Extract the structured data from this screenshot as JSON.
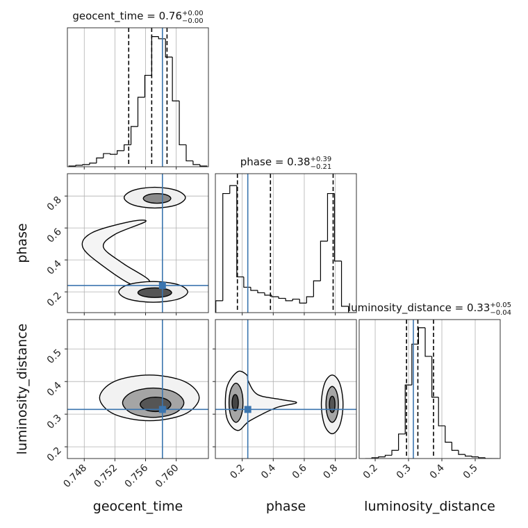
{
  "chart_data": [
    {
      "type": "histogram",
      "title": {
        "text": "geocent_time = 0.76",
        "upper": "+0.00",
        "lower": "−0.00"
      },
      "bins": [
        0.746,
        0.7469,
        0.7478,
        0.7487,
        0.7496,
        0.7505,
        0.7514,
        0.7523,
        0.7532,
        0.7541,
        0.755,
        0.7559,
        0.7568,
        0.7577,
        0.7586,
        0.7595,
        0.7604,
        0.7613,
        0.7622,
        0.7631,
        0.764
      ],
      "values": [
        1,
        2,
        3,
        5,
        12,
        18,
        17,
        22,
        30,
        55,
        95,
        125,
        178,
        175,
        150,
        90,
        30,
        8,
        3,
        1
      ],
      "color": "#000000",
      "xlim": [
        0.7458,
        0.7642
      ],
      "ylim": [
        0,
        190
      ],
      "xticks": [
        0.748,
        0.752,
        0.756,
        {
          "value": 0.76,
          "label": "0.760"
        }
      ],
      "show_xtick_labels": false,
      "quantiles": [
        0.7538,
        0.7568,
        0.7588
      ],
      "truth": 0.7582,
      "truth_color": "#3b75af",
      "grid": true
    },
    {
      "type": "histogram",
      "title": {
        "text": "phase = 0.38",
        "upper": "+0.39",
        "lower": "−0.21"
      },
      "bins": [
        0.03,
        0.075,
        0.12,
        0.165,
        0.21,
        0.255,
        0.3,
        0.345,
        0.39,
        0.435,
        0.48,
        0.525,
        0.57,
        0.615,
        0.66,
        0.705,
        0.75,
        0.795,
        0.84,
        0.885,
        0.93
      ],
      "values": [
        15,
        150,
        160,
        45,
        32,
        28,
        25,
        22,
        20,
        18,
        15,
        17,
        12,
        20,
        40,
        90,
        150,
        65,
        8,
        0
      ],
      "color": "#000000",
      "xlim": [
        0.027,
        0.936
      ],
      "ylim": [
        0,
        175
      ],
      "xticks": [
        0.2,
        0.4,
        0.6,
        0.8
      ],
      "show_xtick_labels": false,
      "quantiles": [
        0.169,
        0.382,
        0.786
      ],
      "truth": 0.236,
      "truth_color": "#3b75af",
      "grid": true
    },
    {
      "type": "histogram",
      "title": {
        "text": "luminosity_distance = 0.33",
        "upper": "+0.05",
        "lower": "−0.04"
      },
      "bins": [
        0.17,
        0.19,
        0.21,
        0.23,
        0.25,
        0.27,
        0.29,
        0.31,
        0.33,
        0.35,
        0.37,
        0.39,
        0.41,
        0.43,
        0.45,
        0.47,
        0.49,
        0.51,
        0.53,
        0.55,
        0.57
      ],
      "values": [
        0,
        1,
        2,
        4,
        10,
        30,
        90,
        140,
        160,
        125,
        75,
        40,
        20,
        10,
        5,
        3,
        2,
        1,
        0,
        0
      ],
      "color": "#000000",
      "xlim": [
        0.152,
        0.575
      ],
      "ylim": [
        0,
        170
      ],
      "xticks": [
        0.2,
        0.3,
        0.4,
        0.5
      ],
      "show_xtick_labels": true,
      "xlabel": "luminosity_distance",
      "quantiles": [
        0.294,
        0.328,
        0.375
      ],
      "truth": 0.3145,
      "truth_color": "#3b75af",
      "grid": true
    },
    {
      "type": "contour",
      "xlim": [
        0.7458,
        0.7642
      ],
      "ylim": [
        0.07,
        0.94
      ],
      "xticks": [
        0.748,
        0.752,
        0.756,
        {
          "value": 0.76,
          "label": "0.760"
        }
      ],
      "show_xtick_labels": false,
      "yticks": [
        0.2,
        0.4,
        0.6,
        0.8
      ],
      "show_ytick_labels": true,
      "ylabel": "phase",
      "contours": [
        {
          "x": [
            0.7545,
            0.7505,
            0.7478,
            0.749,
            0.754,
            0.756,
            0.752,
            0.7505,
            0.753,
            0.7565
          ],
          "y": [
            0.24,
            0.36,
            0.48,
            0.57,
            0.64,
            0.64,
            0.56,
            0.48,
            0.38,
            0.27
          ],
          "fill": "#f4f4f4"
        },
        {
          "x": [
            0.7612,
            0.76,
            0.7572,
            0.7544,
            0.7532,
            0.7544,
            0.7572,
            0.76
          ],
          "y": [
            0.79,
            0.836,
            0.855,
            0.836,
            0.79,
            0.744,
            0.725,
            0.744
          ],
          "fill": "#f0f0f0"
        },
        {
          "x": [
            0.7593,
            0.7588,
            0.7575,
            0.7562,
            0.7557,
            0.7562,
            0.7575,
            0.7588
          ],
          "y": [
            0.785,
            0.806,
            0.815,
            0.806,
            0.785,
            0.764,
            0.755,
            0.764
          ],
          "fill": "#8a8a8a"
        },
        {
          "x": [
            0.7615,
            0.7602,
            0.757,
            0.7538,
            0.7525,
            0.7538,
            0.757,
            0.7602
          ],
          "y": [
            0.2,
            0.246,
            0.265,
            0.246,
            0.2,
            0.154,
            0.135,
            0.154
          ],
          "fill": "#f0f0f0"
        },
        {
          "x": [
            0.7594,
            0.7588,
            0.7572,
            0.7556,
            0.755,
            0.7556,
            0.7572,
            0.7588
          ],
          "y": [
            0.195,
            0.216,
            0.225,
            0.216,
            0.195,
            0.174,
            0.165,
            0.174
          ],
          "fill": "#555555"
        }
      ],
      "truth": {
        "x": 0.7582,
        "y": 0.24
      },
      "truth_color": "#3b75af",
      "grid": true
    },
    {
      "type": "contour",
      "xlim": [
        0.7458,
        0.7642
      ],
      "ylim": [
        0.164,
        0.59
      ],
      "xticks": [
        0.748,
        0.752,
        0.756,
        {
          "value": 0.76,
          "label": "0.760"
        }
      ],
      "show_xtick_labels": true,
      "xlabel": "geocent_time",
      "yticks": [
        0.2,
        0.3,
        0.4,
        0.5
      ],
      "show_ytick_labels": true,
      "ylabel": "luminosity_distance",
      "contours": [
        {
          "x": [
            0.763,
            0.7611,
            0.7565,
            0.7519,
            0.75,
            0.7519,
            0.7565,
            0.7611
          ],
          "y": [
            0.35,
            0.4,
            0.42,
            0.4,
            0.35,
            0.3,
            0.28,
            0.3
          ],
          "fill": "#f2f2f2"
        },
        {
          "x": [
            0.761,
            0.7598,
            0.757,
            0.7542,
            0.753,
            0.7542,
            0.757,
            0.7598
          ],
          "y": [
            0.335,
            0.367,
            0.38,
            0.367,
            0.335,
            0.303,
            0.29,
            0.303
          ],
          "fill": "#a5a5a5"
        },
        {
          "x": [
            0.7593,
            0.7587,
            0.7573,
            0.7559,
            0.7553,
            0.7559,
            0.7573,
            0.7587
          ],
          "y": [
            0.33,
            0.3456,
            0.352,
            0.3456,
            0.33,
            0.3144,
            0.308,
            0.3144
          ],
          "fill": "#555555"
        }
      ],
      "truth": {
        "x": 0.7582,
        "y": 0.3145
      },
      "truth_color": "#3b75af",
      "grid": true
    },
    {
      "type": "contour",
      "xlim": [
        0.027,
        0.936
      ],
      "ylim": [
        0.164,
        0.59
      ],
      "xticks": [
        0.2,
        0.4,
        0.6,
        0.8
      ],
      "show_xtick_labels": true,
      "xlabel": "phase",
      "yticks": [
        0.2,
        0.3,
        0.4,
        0.5
      ],
      "show_ytick_labels": false,
      "contours": [
        {
          "x": [
            0.24,
            0.3,
            0.45,
            0.55,
            0.42,
            0.25,
            0.17,
            0.1,
            0.1,
            0.17,
            0.23
          ],
          "y": [
            0.4,
            0.36,
            0.345,
            0.335,
            0.32,
            0.28,
            0.25,
            0.29,
            0.38,
            0.43,
            0.42
          ],
          "fill": "#f4f4f4"
        },
        {
          "x": [
            0.205,
            0.192,
            0.16,
            0.128,
            0.115,
            0.128,
            0.16,
            0.192
          ],
          "y": [
            0.335,
            0.377,
            0.395,
            0.377,
            0.335,
            0.293,
            0.275,
            0.293
          ],
          "fill": "#a5a5a5"
        },
        {
          "x": [
            0.175,
            0.169,
            0.155,
            0.141,
            0.135,
            0.141,
            0.155,
            0.169
          ],
          "y": [
            0.335,
            0.353,
            0.36,
            0.353,
            0.335,
            0.317,
            0.31,
            0.317
          ],
          "fill": "#444444"
        },
        {
          "x": [
            0.85,
            0.829,
            0.78,
            0.731,
            0.71,
            0.731,
            0.78,
            0.829
          ],
          "y": [
            0.33,
            0.394,
            0.42,
            0.394,
            0.33,
            0.266,
            0.24,
            0.266
          ],
          "fill": "#f2f2f2"
        },
        {
          "x": [
            0.82,
            0.808,
            0.78,
            0.752,
            0.74,
            0.752,
            0.78,
            0.808
          ],
          "y": [
            0.33,
            0.369,
            0.385,
            0.369,
            0.33,
            0.291,
            0.275,
            0.291
          ],
          "fill": "#a5a5a5"
        },
        {
          "x": [
            0.798,
            0.793,
            0.78,
            0.767,
            0.762,
            0.767,
            0.78,
            0.793
          ],
          "y": [
            0.33,
            0.348,
            0.355,
            0.348,
            0.33,
            0.312,
            0.305,
            0.312
          ],
          "fill": "#555555"
        }
      ],
      "truth": {
        "x": 0.236,
        "y": 0.3145
      },
      "truth_color": "#3b75af",
      "grid": true
    }
  ]
}
